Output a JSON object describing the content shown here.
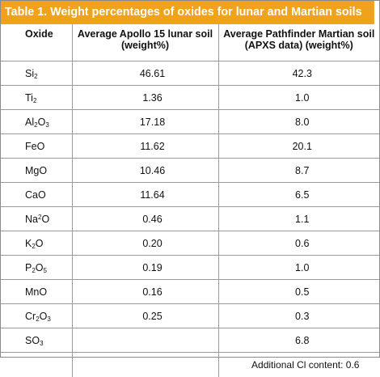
{
  "title": "Table 1. Weight percentages of oxides for lunar and Martian soils",
  "headers": {
    "oxide": "Oxide",
    "lunar_line1": "Average Apollo 15 lunar soil",
    "lunar_line2": "(weight%)",
    "mars_line1": "Average Pathfinder Martian soil",
    "mars_line2": "(APXS data) (weight%)"
  },
  "rows": [
    {
      "oxide": [
        [
          "Si",
          ""
        ],
        [
          "2",
          "sub"
        ]
      ],
      "lunar": "46.61",
      "mars": "42.3"
    },
    {
      "oxide": [
        [
          "Ti",
          ""
        ],
        [
          "2",
          "sub"
        ]
      ],
      "lunar": "1.36",
      "mars": "1.0"
    },
    {
      "oxide": [
        [
          "Al",
          ""
        ],
        [
          "2",
          "sub"
        ],
        [
          "O",
          ""
        ],
        [
          "3",
          "sub"
        ]
      ],
      "lunar": "17.18",
      "mars": "8.0"
    },
    {
      "oxide": [
        [
          "FeO",
          ""
        ]
      ],
      "lunar": "11.62",
      "mars": "20.1"
    },
    {
      "oxide": [
        [
          "MgO",
          ""
        ]
      ],
      "lunar": "10.46",
      "mars": "8.7"
    },
    {
      "oxide": [
        [
          "CaO",
          ""
        ]
      ],
      "lunar": "11.64",
      "mars": "6.5"
    },
    {
      "oxide": [
        [
          "Na",
          ""
        ],
        [
          "2",
          "sup"
        ],
        [
          "O",
          ""
        ]
      ],
      "lunar": "0.46",
      "mars": "1.1"
    },
    {
      "oxide": [
        [
          "K",
          ""
        ],
        [
          "2",
          "sub"
        ],
        [
          "O",
          ""
        ]
      ],
      "lunar": "0.20",
      "mars": "0.6"
    },
    {
      "oxide": [
        [
          "P",
          ""
        ],
        [
          "2",
          "sub"
        ],
        [
          "O",
          ""
        ],
        [
          "5",
          "sub"
        ]
      ],
      "lunar": "0.19",
      "mars": "1.0"
    },
    {
      "oxide": [
        [
          "MnO",
          ""
        ]
      ],
      "lunar": "0.16",
      "mars": "0.5"
    },
    {
      "oxide": [
        [
          "Cr",
          ""
        ],
        [
          "2",
          "sub"
        ],
        [
          "O",
          ""
        ],
        [
          "3",
          "sub"
        ]
      ],
      "lunar": "0.25",
      "mars": "0.3"
    },
    {
      "oxide": [
        [
          "SO",
          ""
        ],
        [
          "3",
          "sub"
        ]
      ],
      "lunar": "",
      "mars": "6.8"
    }
  ],
  "footnote": "Additional Cl content: 0.6",
  "colors": {
    "title_bar": "#f0a21a",
    "title_text": "#ffffff",
    "grid": "#9a9a9a"
  }
}
